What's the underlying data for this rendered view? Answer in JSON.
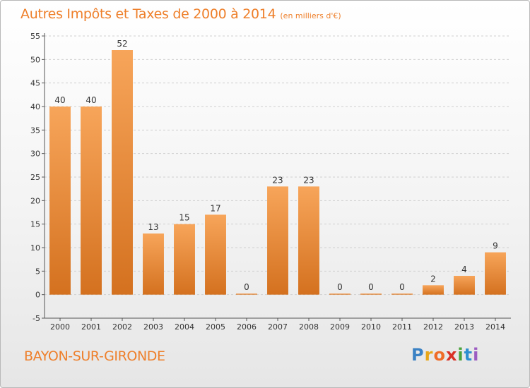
{
  "title": "Autres Impôts et Taxes de 2000 à 2014",
  "subtitle": "(en milliers d'€)",
  "place": "BAYON-SUR-GIRONDE",
  "logo": "Proxiti",
  "colors": {
    "title": "#ee7f2a",
    "bar_light": "#f7a55a",
    "bar_dark": "#d4711f",
    "grid": "#cfcfcf",
    "axis_text": "#333333"
  },
  "chart_data": {
    "type": "bar",
    "categories": [
      "2000",
      "2001",
      "2002",
      "2003",
      "2004",
      "2005",
      "2006",
      "2007",
      "2008",
      "2009",
      "2010",
      "2011",
      "2012",
      "2013",
      "2014"
    ],
    "values": [
      40,
      40,
      52,
      13,
      15,
      17,
      0,
      23,
      23,
      0,
      0,
      0,
      2,
      4,
      9
    ],
    "data_labels": [
      "40",
      "40",
      "52",
      "13",
      "15",
      "17",
      "0",
      "23",
      "23",
      "0",
      "0",
      "0",
      "2",
      "4",
      "9"
    ],
    "yticks": [
      -5,
      0,
      5,
      10,
      15,
      20,
      25,
      30,
      35,
      40,
      45,
      50,
      55
    ],
    "ylim": [
      -5,
      55
    ],
    "grid": true,
    "legend": "none",
    "xlabel": "",
    "ylabel": ""
  }
}
